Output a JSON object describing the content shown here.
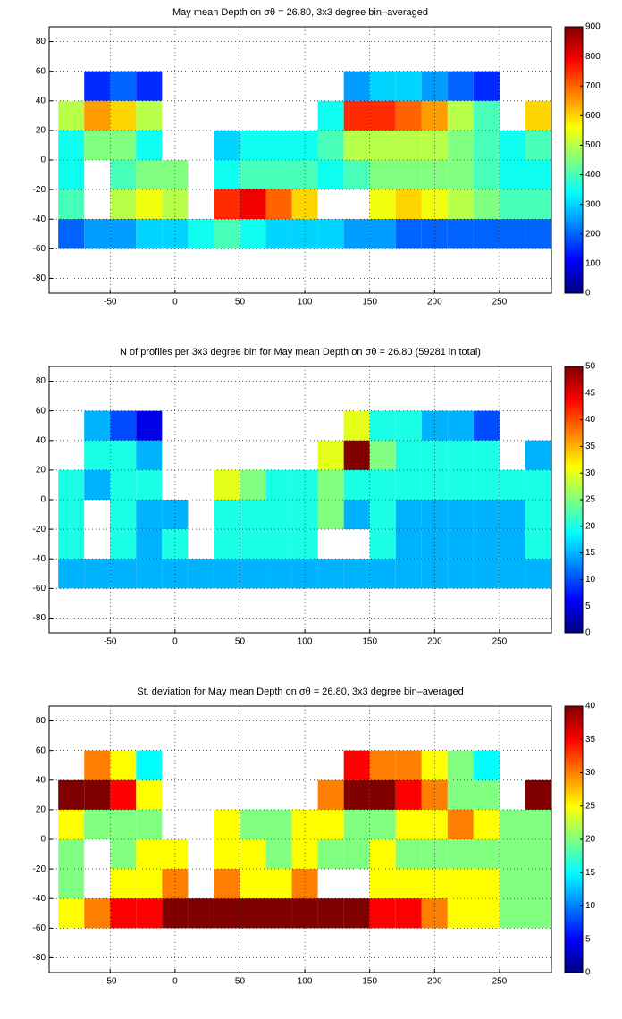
{
  "chart_data": [
    {
      "type": "heatmap",
      "title": "May mean Depth on σθ = 26.80, 3x3 degree bin–averaged",
      "x": [
        -80,
        -60,
        -40,
        -20,
        0,
        20,
        40,
        60,
        80,
        100,
        120,
        140,
        160,
        180,
        200,
        220,
        240,
        260,
        280
      ],
      "y": [
        50,
        30,
        10,
        -10,
        -30,
        -50
      ],
      "z": [
        [
          null,
          150,
          200,
          150,
          null,
          null,
          null,
          null,
          null,
          null,
          null,
          250,
          300,
          300,
          250,
          200,
          150,
          null,
          null
        ],
        [
          500,
          650,
          600,
          500,
          null,
          null,
          null,
          null,
          null,
          null,
          350,
          750,
          750,
          700,
          650,
          500,
          400,
          null,
          600
        ],
        [
          350,
          450,
          450,
          350,
          null,
          null,
          300,
          350,
          350,
          350,
          400,
          500,
          500,
          500,
          500,
          450,
          400,
          350,
          400
        ],
        [
          350,
          null,
          400,
          450,
          450,
          null,
          350,
          400,
          400,
          400,
          350,
          400,
          450,
          450,
          450,
          450,
          400,
          350,
          350
        ],
        [
          400,
          null,
          500,
          550,
          500,
          null,
          750,
          800,
          700,
          600,
          null,
          null,
          550,
          600,
          550,
          500,
          450,
          400,
          400
        ],
        [
          200,
          250,
          250,
          300,
          300,
          350,
          400,
          350,
          300,
          300,
          300,
          250,
          250,
          200,
          200,
          200,
          200,
          200,
          200
        ]
      ],
      "xlim": [
        -97,
        290
      ],
      "ylim": [
        -90,
        90
      ],
      "xticks": [
        -50,
        0,
        50,
        100,
        150,
        200,
        250
      ],
      "yticks": [
        -80,
        -60,
        -40,
        -20,
        0,
        20,
        40,
        60,
        80
      ],
      "clim": [
        0,
        900
      ],
      "cticks": [
        0,
        100,
        200,
        300,
        400,
        500,
        600,
        700,
        800,
        900
      ],
      "colormap": "jet",
      "grid": true
    },
    {
      "type": "heatmap",
      "title": "N of profiles per 3x3 degree bin for May mean Depth on σθ = 26.80 (59281 in total)",
      "x": [
        -80,
        -60,
        -40,
        -20,
        0,
        20,
        40,
        60,
        80,
        100,
        120,
        140,
        160,
        180,
        200,
        220,
        240,
        260,
        280
      ],
      "y": [
        50,
        30,
        10,
        -10,
        -30,
        -50
      ],
      "z": [
        [
          null,
          15,
          10,
          5,
          null,
          null,
          null,
          null,
          null,
          null,
          null,
          30,
          20,
          20,
          15,
          15,
          10,
          null,
          null
        ],
        [
          null,
          20,
          20,
          15,
          null,
          null,
          null,
          null,
          null,
          null,
          30,
          50,
          25,
          20,
          20,
          20,
          20,
          null,
          15
        ],
        [
          20,
          15,
          20,
          20,
          null,
          null,
          30,
          25,
          20,
          20,
          25,
          20,
          20,
          20,
          20,
          20,
          20,
          20,
          20
        ],
        [
          20,
          null,
          20,
          15,
          15,
          null,
          20,
          20,
          20,
          20,
          25,
          15,
          20,
          15,
          15,
          15,
          15,
          15,
          20
        ],
        [
          20,
          null,
          20,
          15,
          20,
          null,
          20,
          20,
          20,
          20,
          null,
          null,
          20,
          15,
          15,
          15,
          15,
          15,
          20
        ],
        [
          15,
          15,
          15,
          15,
          15,
          15,
          15,
          15,
          15,
          15,
          15,
          15,
          15,
          15,
          15,
          15,
          15,
          15,
          15
        ]
      ],
      "xlim": [
        -97,
        290
      ],
      "ylim": [
        -90,
        90
      ],
      "xticks": [
        -50,
        0,
        50,
        100,
        150,
        200,
        250
      ],
      "yticks": [
        -80,
        -60,
        -40,
        -20,
        0,
        20,
        40,
        60,
        80
      ],
      "clim": [
        0,
        50
      ],
      "cticks": [
        0,
        5,
        10,
        15,
        20,
        25,
        30,
        35,
        40,
        45,
        50
      ],
      "colormap": "jet",
      "grid": true
    },
    {
      "type": "heatmap",
      "title": "St. deviation for May mean Depth on σθ = 26.80, 3x3 degree bin–averaged",
      "x": [
        -80,
        -60,
        -40,
        -20,
        0,
        20,
        40,
        60,
        80,
        100,
        120,
        140,
        160,
        180,
        200,
        220,
        240,
        260,
        280
      ],
      "y": [
        50,
        30,
        10,
        -10,
        -30,
        -50
      ],
      "z": [
        [
          null,
          30,
          25,
          15,
          null,
          null,
          null,
          null,
          null,
          null,
          null,
          35,
          30,
          30,
          25,
          20,
          15,
          null,
          null
        ],
        [
          40,
          40,
          35,
          25,
          null,
          null,
          null,
          null,
          null,
          null,
          30,
          40,
          40,
          35,
          30,
          20,
          20,
          null,
          40
        ],
        [
          25,
          20,
          20,
          20,
          null,
          null,
          25,
          20,
          20,
          25,
          25,
          20,
          20,
          25,
          25,
          30,
          25,
          20,
          20
        ],
        [
          20,
          null,
          20,
          25,
          25,
          null,
          25,
          25,
          20,
          25,
          20,
          20,
          25,
          20,
          20,
          20,
          20,
          20,
          20
        ],
        [
          20,
          null,
          25,
          25,
          30,
          null,
          30,
          25,
          25,
          30,
          null,
          null,
          25,
          25,
          25,
          25,
          25,
          20,
          20
        ],
        [
          25,
          30,
          35,
          35,
          40,
          40,
          40,
          40,
          40,
          40,
          40,
          40,
          35,
          35,
          30,
          25,
          25,
          20,
          20
        ]
      ],
      "xlim": [
        -97,
        290
      ],
      "ylim": [
        -90,
        90
      ],
      "xticks": [
        -50,
        0,
        50,
        100,
        150,
        200,
        250
      ],
      "yticks": [
        -80,
        -60,
        -40,
        -20,
        0,
        20,
        40,
        60,
        80
      ],
      "clim": [
        0,
        40
      ],
      "cticks": [
        0,
        5,
        10,
        15,
        20,
        25,
        30,
        35,
        40
      ],
      "colormap": "jet",
      "grid": true
    }
  ]
}
